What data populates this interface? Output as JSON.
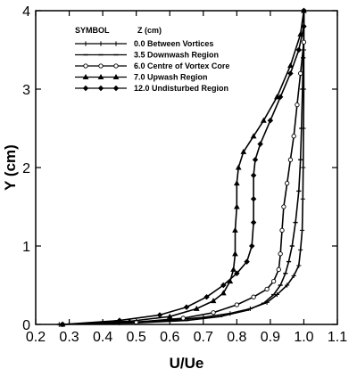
{
  "chart_data": {
    "type": "line",
    "title": "",
    "xlabel": "U/Ue",
    "ylabel": "Y (cm)",
    "xlim": [
      0.2,
      1.1
    ],
    "ylim": [
      0,
      4
    ],
    "xticks": [
      "0.2",
      "0.3",
      "0.4",
      "0.5",
      "0.6",
      "0.7",
      "0.8",
      "0.9",
      "1.0",
      "1.1"
    ],
    "yticks": [
      "0",
      "1",
      "2",
      "3",
      "4"
    ],
    "grid": false,
    "legend_position": "top-left",
    "legend_header": {
      "symbol": "SYMBOL",
      "z": "Z (cm)"
    },
    "series": [
      {
        "name": "0.0 Between Vortices",
        "marker": "plus",
        "points": [
          [
            0.27,
            0.0
          ],
          [
            0.45,
            0.02
          ],
          [
            0.6,
            0.05
          ],
          [
            0.7,
            0.09
          ],
          [
            0.78,
            0.14
          ],
          [
            0.84,
            0.2
          ],
          [
            0.89,
            0.28
          ],
          [
            0.92,
            0.38
          ],
          [
            0.95,
            0.5
          ],
          [
            0.97,
            0.62
          ],
          [
            0.985,
            0.75
          ],
          [
            0.99,
            0.95
          ],
          [
            0.995,
            1.2
          ],
          [
            0.997,
            1.6
          ],
          [
            0.998,
            2.0
          ],
          [
            0.999,
            2.5
          ],
          [
            1.0,
            3.0
          ],
          [
            1.0,
            3.5
          ],
          [
            1.0,
            4.0
          ]
        ]
      },
      {
        "name": "3.5 Downwash Region",
        "marker": "dash",
        "points": [
          [
            0.27,
            0.0
          ],
          [
            0.5,
            0.02
          ],
          [
            0.65,
            0.05
          ],
          [
            0.75,
            0.1
          ],
          [
            0.83,
            0.18
          ],
          [
            0.88,
            0.27
          ],
          [
            0.91,
            0.38
          ],
          [
            0.93,
            0.5
          ],
          [
            0.945,
            0.65
          ],
          [
            0.955,
            0.8
          ],
          [
            0.965,
            1.0
          ],
          [
            0.975,
            1.3
          ],
          [
            0.985,
            1.7
          ],
          [
            0.99,
            2.1
          ],
          [
            0.993,
            2.5
          ],
          [
            0.996,
            3.0
          ],
          [
            0.998,
            3.4
          ],
          [
            1.0,
            3.8
          ],
          [
            1.0,
            4.0
          ]
        ]
      },
      {
        "name": "6.0 Centre of Vortex Core",
        "marker": "circle",
        "points": [
          [
            0.28,
            0.0
          ],
          [
            0.5,
            0.03
          ],
          [
            0.64,
            0.08
          ],
          [
            0.73,
            0.15
          ],
          [
            0.8,
            0.25
          ],
          [
            0.85,
            0.35
          ],
          [
            0.89,
            0.45
          ],
          [
            0.91,
            0.55
          ],
          [
            0.925,
            0.7
          ],
          [
            0.93,
            0.9
          ],
          [
            0.935,
            1.2
          ],
          [
            0.94,
            1.5
          ],
          [
            0.95,
            1.8
          ],
          [
            0.96,
            2.1
          ],
          [
            0.97,
            2.4
          ],
          [
            0.98,
            2.8
          ],
          [
            0.99,
            3.2
          ],
          [
            1.0,
            3.6
          ],
          [
            1.0,
            4.0
          ]
        ]
      },
      {
        "name": "7.0 Upwash Region",
        "marker": "triangle",
        "points": [
          [
            0.28,
            0.0
          ],
          [
            0.48,
            0.04
          ],
          [
            0.6,
            0.1
          ],
          [
            0.68,
            0.2
          ],
          [
            0.73,
            0.3
          ],
          [
            0.76,
            0.4
          ],
          [
            0.78,
            0.55
          ],
          [
            0.79,
            0.7
          ],
          [
            0.795,
            0.9
          ],
          [
            0.795,
            1.2
          ],
          [
            0.8,
            1.5
          ],
          [
            0.8,
            1.8
          ],
          [
            0.805,
            2.0
          ],
          [
            0.82,
            2.2
          ],
          [
            0.85,
            2.4
          ],
          [
            0.88,
            2.6
          ],
          [
            0.92,
            2.9
          ],
          [
            0.96,
            3.3
          ],
          [
            0.99,
            3.7
          ],
          [
            1.0,
            4.0
          ]
        ]
      },
      {
        "name": "12.0 Undisturbed Region",
        "marker": "diamond",
        "points": [
          [
            0.28,
            0.0
          ],
          [
            0.45,
            0.05
          ],
          [
            0.57,
            0.12
          ],
          [
            0.65,
            0.22
          ],
          [
            0.71,
            0.35
          ],
          [
            0.76,
            0.5
          ],
          [
            0.8,
            0.65
          ],
          [
            0.83,
            0.8
          ],
          [
            0.845,
            1.0
          ],
          [
            0.85,
            1.3
          ],
          [
            0.85,
            1.6
          ],
          [
            0.85,
            1.9
          ],
          [
            0.855,
            2.1
          ],
          [
            0.87,
            2.3
          ],
          [
            0.9,
            2.6
          ],
          [
            0.93,
            2.9
          ],
          [
            0.96,
            3.2
          ],
          [
            0.985,
            3.5
          ],
          [
            1.0,
            3.8
          ],
          [
            1.0,
            4.0
          ]
        ]
      }
    ]
  }
}
